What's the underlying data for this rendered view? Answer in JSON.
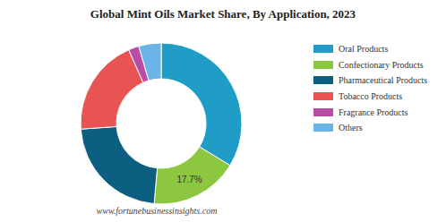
{
  "chart_data": {
    "type": "pie",
    "title": "Global Mint Oils Market Share, By Application, 2023",
    "source": "www.fortunebusinessinsights.com",
    "categories": [
      "Oral Products",
      "Confectionary Products",
      "Pharmaceutical Products",
      "Tobacco Products",
      "Fragrance Products",
      "Others"
    ],
    "values": [
      33.7,
      17.7,
      22.5,
      19.5,
      2.1,
      4.5
    ],
    "value_labels": [
      null,
      "17.7%",
      null,
      null,
      null,
      null
    ],
    "data_labels": true,
    "colors": [
      "#1f9dc6",
      "#8dc63f",
      "#0d5f82",
      "#e85454",
      "#b84ca6",
      "#6ab4e8"
    ],
    "legend": "right"
  }
}
